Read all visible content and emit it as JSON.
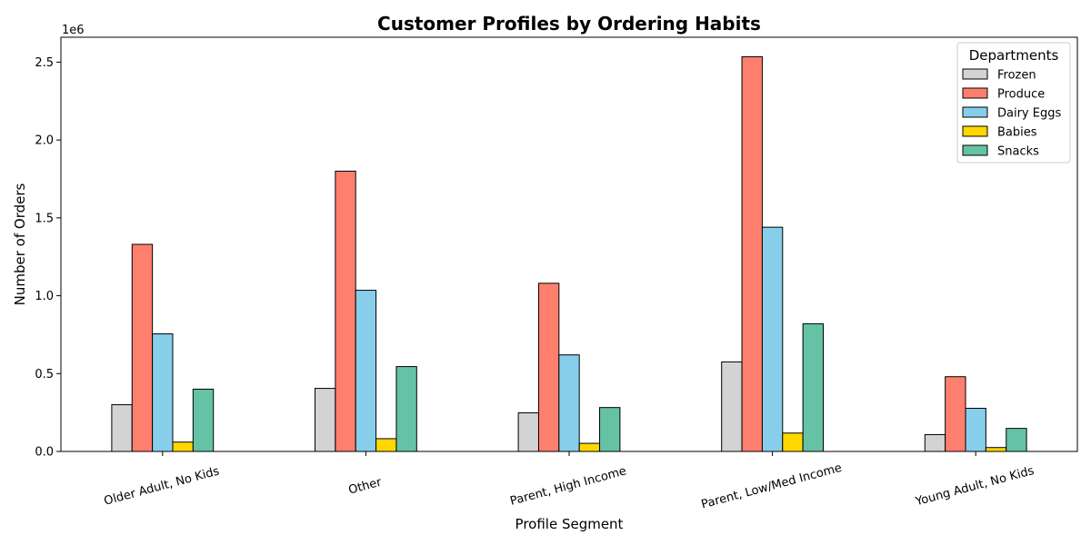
{
  "chart_data": {
    "type": "bar",
    "title": "Customer Profiles by Ordering Habits",
    "xlabel": "Profile Segment",
    "ylabel": "Number of Orders",
    "y_offset_label": "1e6",
    "y_ticks": [
      0,
      500000,
      1000000,
      1500000,
      2000000,
      2500000
    ],
    "y_tick_labels": [
      "0.0",
      "0.5",
      "1.0",
      "1.5",
      "2.0",
      "2.5"
    ],
    "ylim": [
      0,
      2660000
    ],
    "grid": false,
    "legend_placement": "top-right",
    "legend_title": "Departments",
    "categories": [
      "Older Adult, No Kids",
      "Other",
      "Parent, High Income",
      "Parent, Low/Med Income",
      "Young Adult, No Kids"
    ],
    "series": [
      {
        "name": "Frozen",
        "color": "#d3d3d3",
        "values": [
          300000,
          405000,
          248000,
          575000,
          108000
        ]
      },
      {
        "name": "Produce",
        "color": "#ff7f6e",
        "values": [
          1330000,
          1800000,
          1080000,
          2535000,
          480000
        ]
      },
      {
        "name": "Dairy Eggs",
        "color": "#87ceeb",
        "values": [
          755000,
          1035000,
          620000,
          1440000,
          277000
        ]
      },
      {
        "name": "Babies",
        "color": "#ffd700",
        "values": [
          60000,
          82000,
          52000,
          118000,
          25000
        ]
      },
      {
        "name": "Snacks",
        "color": "#66c2a5",
        "values": [
          400000,
          545000,
          282000,
          820000,
          148000
        ]
      }
    ]
  }
}
